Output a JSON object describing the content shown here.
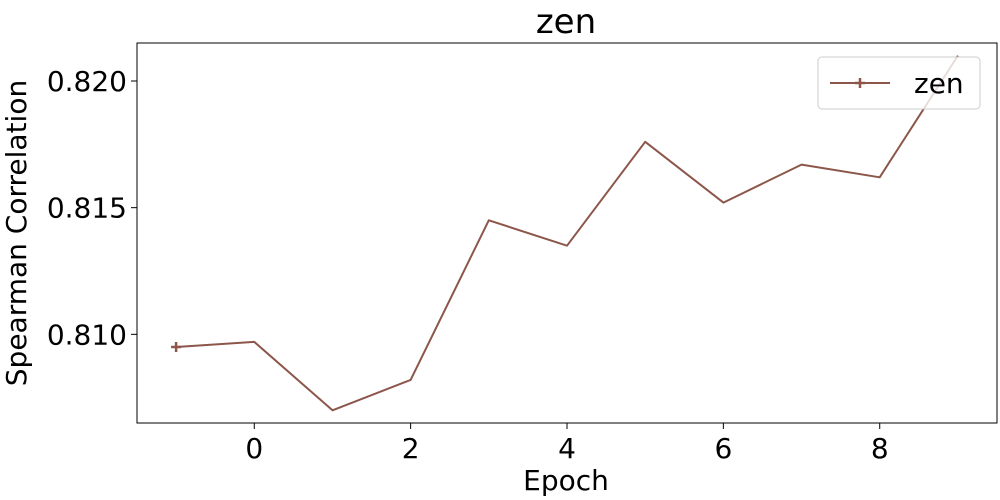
{
  "chart_data": {
    "type": "line",
    "title": "zen",
    "xlabel": "Epoch",
    "ylabel": "Spearman Correlation",
    "xlim": [
      -1.5,
      9.5
    ],
    "ylim": [
      0.8065,
      0.8215
    ],
    "x_ticks": [
      0,
      2,
      4,
      6,
      8
    ],
    "x_tick_labels": [
      "0",
      "2",
      "4",
      "6",
      "8"
    ],
    "y_ticks": [
      0.81,
      0.815,
      0.82
    ],
    "y_tick_labels": [
      "0.810",
      "0.815",
      "0.820"
    ],
    "grid": false,
    "legend_position": "top-right",
    "series": [
      {
        "name": "zen",
        "color": "#8c564b",
        "marker": "plus",
        "marker_at": [
          0
        ],
        "x": [
          -1,
          0,
          1,
          2,
          3,
          4,
          5,
          6,
          7,
          8,
          9
        ],
        "y": [
          0.8095,
          0.8097,
          0.807,
          0.8082,
          0.8145,
          0.8135,
          0.8176,
          0.8152,
          0.8167,
          0.8162,
          0.821
        ]
      }
    ]
  }
}
